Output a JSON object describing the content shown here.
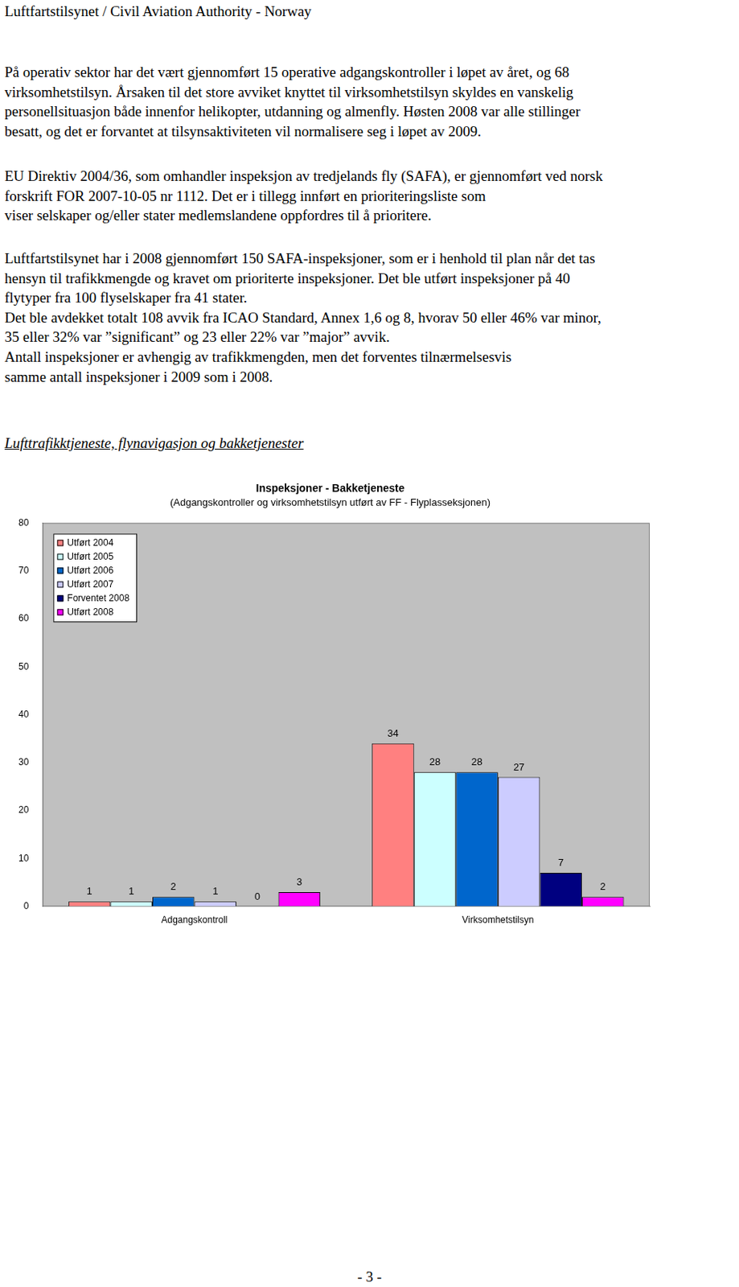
{
  "header": "Luftfartstilsynet / Civil Aviation Authority - Norway",
  "paragraphs": [
    [
      "På operativ sektor har det vært gjennomført 15 operative adgangskontroller i løpet av året, og 68",
      "virksomhetstilsyn. Årsaken til det store avviket knyttet til virksomhetstilsyn skyldes en vanskelig",
      "personellsituasjon både innenfor helikopter, utdanning og almenfly. Høsten 2008 var alle stillinger",
      "besatt, og det er forvantet at tilsynsaktiviteten vil normalisere seg i løpet av 2009."
    ],
    [
      "EU Direktiv 2004/36, som omhandler inspeksjon av tredjelands fly (SAFA), er gjennomført ved norsk",
      "forskrift FOR 2007-10-05 nr 1112. Det er i tillegg innført en prioriteringsliste som",
      "viser selskaper og/eller stater medlemslandene oppfordres til å prioritere."
    ],
    [
      "Luftfartstilsynet har i 2008 gjennomført 150 SAFA-inspeksjoner, som er i henhold til plan når det tas",
      "hensyn til trafikkmengde og kravet om prioriterte inspeksjoner.  Det ble utført inspeksjoner på 40",
      "flytyper fra 100 flyselskaper fra 41 stater.",
      "Det ble avdekket totalt 108 avvik fra ICAO Standard, Annex 1,6 og 8, hvorav 50 eller 46% var minor,",
      "35 eller 32% var ”significant” og 23 eller 22% var ”major” avvik.",
      "Antall inspeksjoner er avhengig av trafikkmengden, men det forventes tilnærmelsesvis",
      "samme antall inspeksjoner i 2009 som i 2008."
    ]
  ],
  "section_title": "Lufttrafikktjeneste, flynavigasjon og bakketjenester",
  "chart_data": {
    "type": "bar",
    "title": "Inspeksjoner - Bakketjeneste",
    "subtitle": "(Adgangskontroller og virksomhetstilsyn utført av FF - Flyplasseksjonen)",
    "categories": [
      "Adgangskontroll",
      "Virksomhetstilsyn"
    ],
    "series": [
      {
        "name": "Utført 2004",
        "color": "#ff8080",
        "values": [
          1,
          34
        ]
      },
      {
        "name": "Utført 2005",
        "color": "#ccffff",
        "values": [
          1,
          28
        ]
      },
      {
        "name": "Utført 2006",
        "color": "#0066cc",
        "values": [
          2,
          28
        ]
      },
      {
        "name": "Utført 2007",
        "color": "#ccccff",
        "values": [
          1,
          27
        ]
      },
      {
        "name": "Forventet 2008",
        "color": "#000080",
        "values": [
          0,
          7
        ]
      },
      {
        "name": "Utført 2008",
        "color": "#ff00ff",
        "values": [
          3,
          2
        ]
      }
    ],
    "ylim": [
      0,
      80
    ],
    "yticks": [
      0,
      10,
      20,
      30,
      40,
      50,
      60,
      70,
      80
    ],
    "grid": false,
    "legend": "upper left",
    "data_labels": true
  },
  "page_number": "- 3 -"
}
